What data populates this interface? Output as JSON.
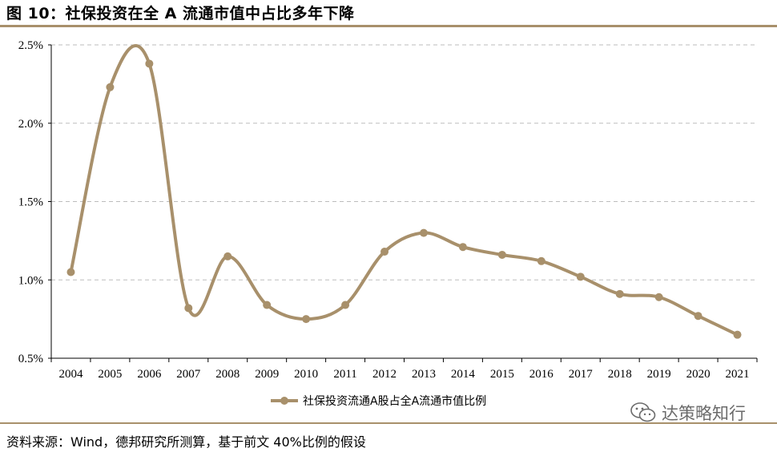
{
  "header": {
    "title": "图 10：社保投资在全 A 流通市值中占比多年下降"
  },
  "footer": {
    "source": "资料来源：Wind，德邦研究所测算，基于前文 40%比例的假设"
  },
  "watermark": {
    "text": "达策略知行",
    "icon": "wechat-icon"
  },
  "colors": {
    "series": "#a8906b",
    "rule": "#a8906b",
    "grid": "#bdbdbd"
  },
  "chart_data": {
    "type": "line",
    "title": "",
    "xlabel": "",
    "ylabel": "",
    "x": [
      "2004",
      "2005",
      "2006",
      "2007",
      "2008",
      "2009",
      "2010",
      "2011",
      "2012",
      "2013",
      "2014",
      "2015",
      "2016",
      "2017",
      "2018",
      "2019",
      "2020",
      "2021"
    ],
    "series": [
      {
        "name": "社保投资流通A股占全A流通市值比例",
        "values": [
          1.05,
          2.23,
          2.38,
          0.82,
          1.15,
          0.84,
          0.75,
          0.84,
          1.18,
          1.3,
          1.21,
          1.16,
          1.12,
          1.02,
          0.91,
          0.89,
          0.77,
          0.65
        ]
      }
    ],
    "ylim": [
      0.5,
      2.5
    ],
    "yticks": [
      "0.5%",
      "1.0%",
      "1.5%",
      "2.0%",
      "2.5%"
    ],
    "ytick_values": [
      0.5,
      1.0,
      1.5,
      2.0,
      2.5
    ],
    "grid": "horizontal-dashed",
    "smooth": true,
    "legend_position": "bottom-center"
  }
}
